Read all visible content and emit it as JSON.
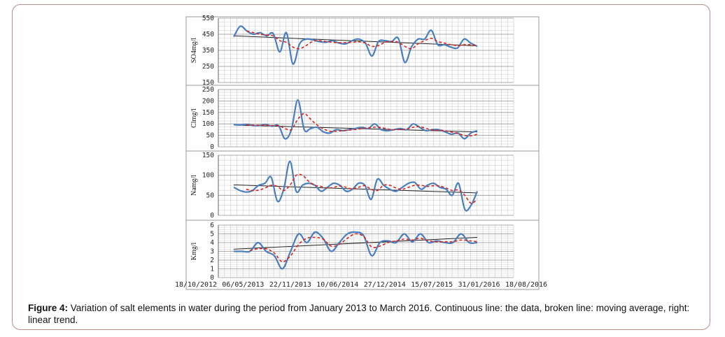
{
  "caption": {
    "label": "Figure 4:",
    "text": " Variation of salt elements in water during the period from January 2013 to March 2016. Continuous line: the data, broken line: moving average, right: linear trend."
  },
  "colors": {
    "data": "#4a7ebf",
    "moving_average": "#d9261c",
    "trend": "#222222"
  },
  "chart_data": [
    {
      "type": "line",
      "ylabel": "SO4mg/l",
      "ylim": [
        150,
        550
      ],
      "yticks": [
        150,
        250,
        350,
        450,
        550
      ],
      "grid": true,
      "series": [
        {
          "values": [
            435,
            500,
            470,
            450,
            460,
            440,
            455,
            340,
            460,
            265,
            390,
            420,
            415,
            405,
            400,
            410,
            395,
            390,
            410,
            420,
            395,
            315,
            405,
            410,
            405,
            425,
            275,
            370,
            420,
            420,
            475,
            385,
            385,
            370,
            365,
            420,
            395,
            375
          ]
        },
        {
          "values": [
            null,
            null,
            470,
            460,
            450,
            445,
            440,
            410,
            400,
            370,
            360,
            380,
            405,
            410,
            405,
            400,
            398,
            398,
            400,
            402,
            395,
            375,
            380,
            400,
            405,
            400,
            375,
            360,
            390,
            410,
            425,
            405,
            395,
            385,
            380,
            385,
            385,
            380
          ]
        },
        {
          "trend": [
            440,
            378
          ]
        }
      ]
    },
    {
      "type": "line",
      "ylabel": "Clmg/l",
      "ylim": [
        0,
        250
      ],
      "yticks": [
        0,
        50,
        100,
        150,
        200,
        250
      ],
      "grid": true,
      "series": [
        {
          "values": [
            97,
            95,
            98,
            93,
            93,
            97,
            90,
            92,
            35,
            75,
            205,
            75,
            80,
            85,
            65,
            60,
            75,
            70,
            75,
            80,
            85,
            80,
            100,
            75,
            70,
            75,
            80,
            75,
            100,
            85,
            70,
            75,
            75,
            65,
            55,
            60,
            35,
            60,
            70
          ]
        },
        {
          "values": [
            null,
            null,
            96,
            95,
            94,
            94,
            93,
            92,
            80,
            75,
            120,
            145,
            120,
            95,
            78,
            68,
            68,
            70,
            73,
            76,
            80,
            82,
            86,
            84,
            78,
            74,
            76,
            78,
            85,
            88,
            80,
            74,
            72,
            70,
            64,
            58,
            50,
            48,
            55
          ]
        },
        {
          "trend": [
            95,
            65
          ]
        }
      ]
    },
    {
      "type": "line",
      "ylabel": "Namg/l",
      "ylim": [
        0,
        150
      ],
      "yticks": [
        0,
        50,
        100,
        150
      ],
      "grid": true,
      "series": [
        {
          "values": [
            70,
            62,
            58,
            62,
            75,
            80,
            95,
            35,
            65,
            135,
            60,
            75,
            80,
            75,
            60,
            70,
            80,
            75,
            60,
            65,
            80,
            75,
            40,
            90,
            75,
            65,
            60,
            70,
            80,
            82,
            65,
            75,
            80,
            70,
            65,
            50,
            80,
            15,
            25,
            60
          ]
        },
        {
          "values": [
            null,
            null,
            65,
            62,
            63,
            68,
            75,
            72,
            62,
            75,
            100,
            100,
            85,
            75,
            72,
            68,
            70,
            73,
            70,
            66,
            70,
            74,
            65,
            62,
            75,
            75,
            68,
            65,
            70,
            75,
            75,
            72,
            74,
            73,
            68,
            62,
            63,
            50,
            30,
            40
          ]
        },
        {
          "trend": [
            76,
            56
          ]
        }
      ]
    },
    {
      "type": "line",
      "ylabel": "Kmg/l",
      "ylim": [
        0,
        6
      ],
      "yticks": [
        0,
        1,
        2,
        3,
        4,
        5,
        6
      ],
      "grid": true,
      "xticks": [
        "18/10/2012",
        "06/05/2013",
        "22/11/2013",
        "10/06/2014",
        "27/12/2014",
        "15/07/2015",
        "31/01/2016",
        "18/08/2016"
      ],
      "series": [
        {
          "values": [
            3,
            3,
            3,
            4,
            3,
            2.5,
            1,
            3,
            5,
            4,
            5.2,
            4.5,
            3,
            4,
            5,
            5.2,
            4.8,
            2.5,
            4,
            4.2,
            4,
            5,
            4.1,
            5,
            4,
            4.2,
            4,
            4,
            5,
            4,
            4
          ]
        },
        {
          "values": [
            null,
            null,
            3.1,
            3.3,
            3.3,
            2.8,
            1.8,
            2.5,
            3.8,
            4.5,
            4.6,
            4.4,
            3.6,
            3.8,
            4.5,
            5,
            4.7,
            3.5,
            3.6,
            4,
            4.2,
            4.4,
            4.3,
            4.5,
            4.2,
            4.1,
            4.1,
            4.1,
            4.3,
            4.2,
            4.1
          ]
        },
        {
          "trend": [
            3.25,
            4.6
          ]
        }
      ]
    }
  ]
}
